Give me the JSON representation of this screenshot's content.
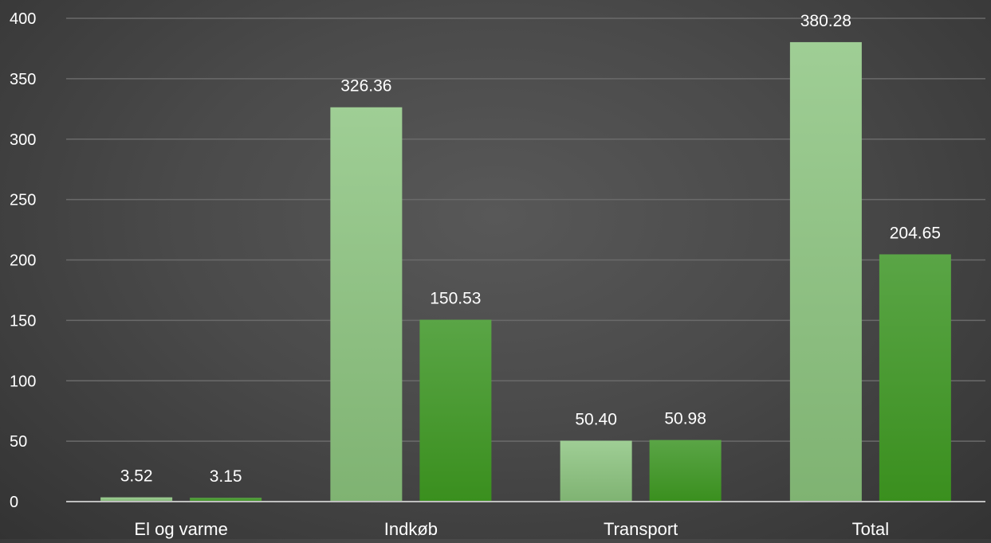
{
  "chart_data": {
    "type": "bar",
    "title": "",
    "xlabel": "",
    "ylabel": "",
    "categories": [
      "El og varme",
      "Indkøb",
      "Transport",
      "Total"
    ],
    "series": [
      {
        "values": [
          3.52,
          326.36,
          50.4,
          380.28
        ],
        "labels": [
          "3.52",
          "326.36",
          "50.40",
          "380.28"
        ],
        "color_top": "#9fce95",
        "color_bottom": "#7fb372"
      },
      {
        "values": [
          3.15,
          150.53,
          50.98,
          204.65
        ],
        "labels": [
          "3.15",
          "150.53",
          "50.98",
          "204.65"
        ],
        "color_top": "#5aa546",
        "color_bottom": "#3a8f1e"
      }
    ],
    "ylim": [
      0,
      400
    ],
    "yticks": [
      0,
      50,
      100,
      150,
      200,
      250,
      300,
      350,
      400
    ],
    "grid": true,
    "legend": "none",
    "colors": {
      "gridline": "#6a6a6a",
      "axis_line": "#bfbfbf",
      "text": "#ffffff"
    }
  }
}
